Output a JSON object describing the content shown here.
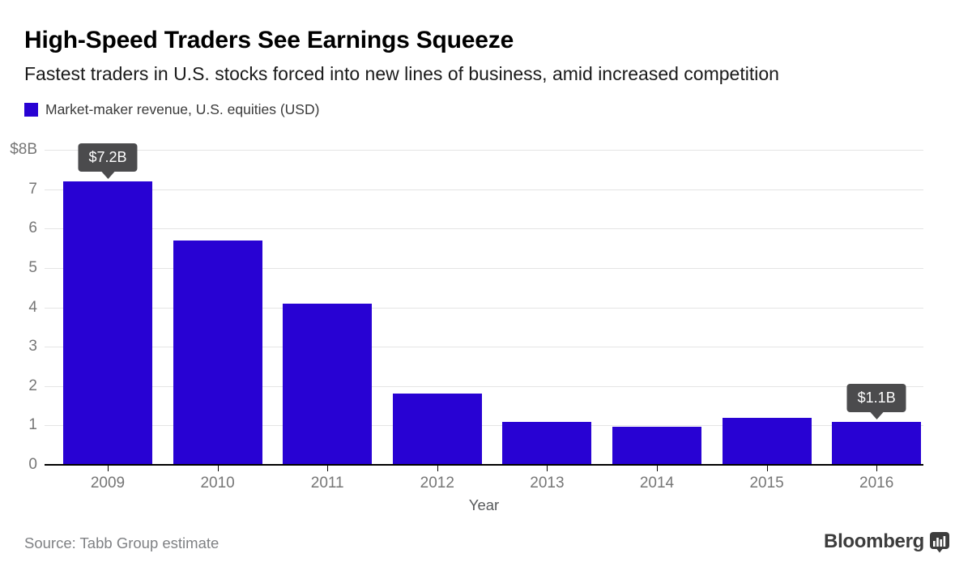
{
  "header": {
    "title": "High-Speed Traders See Earnings Squeeze",
    "subtitle": "Fastest traders in U.S. stocks forced into new lines of business, amid increased competition"
  },
  "legend": {
    "label": "Market-maker revenue, U.S. equities (USD)"
  },
  "chart_data": {
    "type": "bar",
    "title": "Market-maker revenue, U.S. equities (USD)",
    "categories": [
      "2009",
      "2010",
      "2011",
      "2012",
      "2013",
      "2014",
      "2015",
      "2016"
    ],
    "values": [
      7.2,
      5.7,
      4.1,
      1.8,
      1.1,
      0.96,
      1.2,
      1.1
    ],
    "xlabel": "Year",
    "ylabel": "",
    "ylim": [
      0,
      8
    ],
    "y_tick_labels_top_to_bottom": [
      "$8B",
      "7",
      "6",
      "5",
      "4",
      "3",
      "2",
      "1",
      "0"
    ],
    "grid": true,
    "legend_position": "top-left",
    "annotations": [
      {
        "category": "2009",
        "label": "$7.2B"
      },
      {
        "category": "2016",
        "label": "$1.1B"
      }
    ]
  },
  "footer": {
    "source": "Source: Tabb Group estimate",
    "brand": "Bloomberg"
  },
  "colors": {
    "bar": "#2802d3",
    "gridline": "#e4e4e4",
    "axis_label": "#767676",
    "callout_bg": "#4b4b4d",
    "callout_text": "#ffffff",
    "baseline": "#000000"
  }
}
